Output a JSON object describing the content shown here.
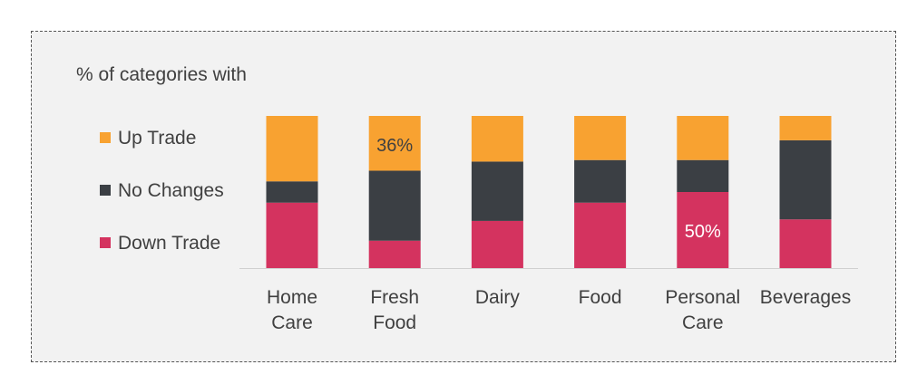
{
  "chart_data": {
    "type": "bar",
    "stacked": true,
    "subtitle": "% of categories with",
    "categories": [
      [
        "Home",
        "Care"
      ],
      [
        "Fresh",
        "Food"
      ],
      [
        "Dairy"
      ],
      [
        "Food"
      ],
      [
        "Personal",
        "Care"
      ],
      [
        "Beverages"
      ]
    ],
    "series": [
      {
        "name": "Down Trade",
        "color": "#d4335f",
        "values": [
          43,
          18,
          31,
          43,
          50,
          32
        ]
      },
      {
        "name": "No Changes",
        "color": "#3b3f44",
        "values": [
          14,
          46,
          39,
          28,
          21,
          52
        ]
      },
      {
        "name": "Up Trade",
        "color": "#f8a231",
        "values": [
          43,
          36,
          30,
          29,
          29,
          16
        ]
      }
    ],
    "data_labels": [
      {
        "series": "Up Trade",
        "category_index": 1,
        "text": "36%",
        "color": "#404040"
      },
      {
        "series": "Down Trade",
        "category_index": 4,
        "text": "50%",
        "color": "#ffffff"
      }
    ],
    "legend_position": "left",
    "ylim": [
      0,
      100
    ],
    "grid": false
  }
}
